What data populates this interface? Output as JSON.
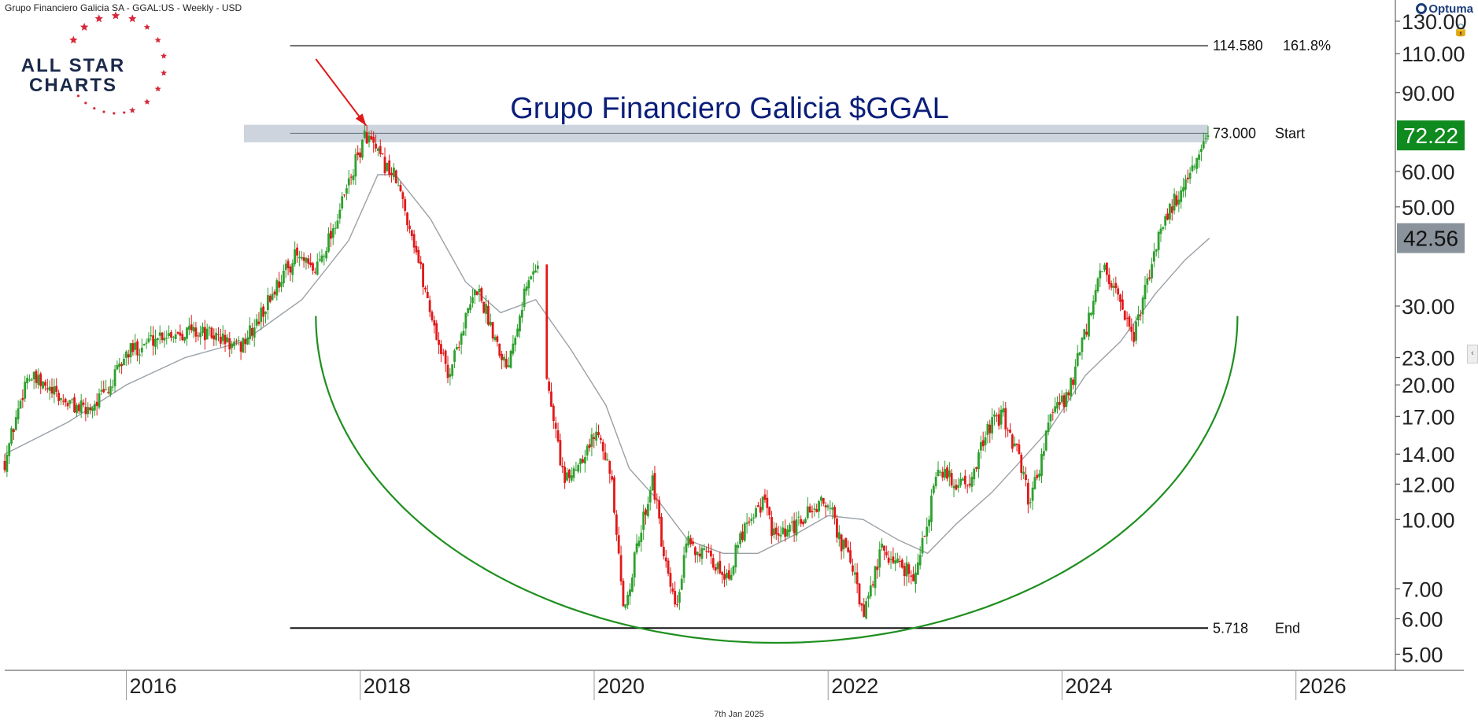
{
  "header": {
    "instrument": "Grupo Financiero Galicia SA - GGAL:US - Weekly - USD"
  },
  "brand": {
    "name_line1": "ALL STAR",
    "name_line2": "CHARTS",
    "platform": "Optuma"
  },
  "footer": {
    "date_stamp": "7th Jan 2025"
  },
  "colors": {
    "up": "#2ea02e",
    "down": "#e01818",
    "arc": "#1f8f1f",
    "ma": "#9aa0a6",
    "title": "#0b1f7a",
    "arrow": "#e01818",
    "zone": "#bcc6d2",
    "last_price_bg": "#0f8a1e",
    "ma_price_bg": "#8a939c",
    "logo_navy": "#1b2a4a",
    "logo_red": "#d62839"
  },
  "chart_data": {
    "type": "candlestick",
    "title": "Grupo Financiero Galicia $GGAL",
    "interval": "Weekly",
    "currency": "USD",
    "y_scale": "log",
    "ylim": [
      4.6,
      145
    ],
    "xlim": [
      2014.96,
      2026.85
    ],
    "x_ticks": [
      {
        "value": 2016,
        "label": "2016"
      },
      {
        "value": 2018,
        "label": "2018"
      },
      {
        "value": 2020,
        "label": "2020"
      },
      {
        "value": 2022,
        "label": "2022"
      },
      {
        "value": 2024,
        "label": "2024"
      },
      {
        "value": 2026,
        "label": "2026"
      }
    ],
    "y_ticks": [
      {
        "value": 130,
        "label": "130.00"
      },
      {
        "value": 110,
        "label": "110.00"
      },
      {
        "value": 90,
        "label": "90.00"
      },
      {
        "value": 60,
        "label": "60.00"
      },
      {
        "value": 50,
        "label": "50.00"
      },
      {
        "value": 30,
        "label": "30.00"
      },
      {
        "value": 23,
        "label": "23.00"
      },
      {
        "value": 20,
        "label": "20.00"
      },
      {
        "value": 17,
        "label": "17.00"
      },
      {
        "value": 14,
        "label": "14.00"
      },
      {
        "value": 12,
        "label": "12.00"
      },
      {
        "value": 10,
        "label": "10.00"
      },
      {
        "value": 7,
        "label": "7.00"
      },
      {
        "value": 6,
        "label": "6.00"
      },
      {
        "value": 5,
        "label": "5.00"
      }
    ],
    "price_path": [
      [
        2014.96,
        13.5
      ],
      [
        2015.15,
        21.0
      ],
      [
        2015.45,
        18.5
      ],
      [
        2015.65,
        17.5
      ],
      [
        2015.85,
        19.5
      ],
      [
        2016.0,
        23.5
      ],
      [
        2016.3,
        26.0
      ],
      [
        2016.55,
        26.5
      ],
      [
        2016.8,
        25.5
      ],
      [
        2016.95,
        24.0
      ],
      [
        2017.1,
        27.0
      ],
      [
        2017.3,
        34.0
      ],
      [
        2017.45,
        39.0
      ],
      [
        2017.6,
        35.5
      ],
      [
        2017.8,
        47.0
      ],
      [
        2017.98,
        65.0
      ],
      [
        2018.05,
        73.0
      ],
      [
        2018.15,
        65.0
      ],
      [
        2018.3,
        58.0
      ],
      [
        2018.45,
        43.0
      ],
      [
        2018.55,
        33.0
      ],
      [
        2018.65,
        26.0
      ],
      [
        2018.75,
        21.0
      ],
      [
        2018.9,
        28.0
      ],
      [
        2019.0,
        33.0
      ],
      [
        2019.1,
        28.0
      ],
      [
        2019.25,
        22.0
      ],
      [
        2019.4,
        32.0
      ],
      [
        2019.52,
        38.0
      ],
      [
        2019.6,
        20.0
      ],
      [
        2019.75,
        12.0
      ],
      [
        2019.9,
        14.0
      ],
      [
        2020.05,
        16.0
      ],
      [
        2020.15,
        12.0
      ],
      [
        2020.25,
        6.2
      ],
      [
        2020.4,
        9.5
      ],
      [
        2020.5,
        12.5
      ],
      [
        2020.6,
        8.0
      ],
      [
        2020.7,
        6.2
      ],
      [
        2020.8,
        9.0
      ],
      [
        2020.9,
        8.5
      ],
      [
        2021.0,
        8.0
      ],
      [
        2021.15,
        7.5
      ],
      [
        2021.3,
        10.0
      ],
      [
        2021.45,
        11.0
      ],
      [
        2021.55,
        9.0
      ],
      [
        2021.7,
        9.5
      ],
      [
        2021.85,
        10.5
      ],
      [
        2022.0,
        11.0
      ],
      [
        2022.1,
        9.0
      ],
      [
        2022.2,
        8.0
      ],
      [
        2022.3,
        6.0
      ],
      [
        2022.45,
        8.5
      ],
      [
        2022.6,
        8.0
      ],
      [
        2022.75,
        7.5
      ],
      [
        2022.85,
        10.0
      ],
      [
        2022.95,
        13.0
      ],
      [
        2023.1,
        12.0
      ],
      [
        2023.25,
        12.5
      ],
      [
        2023.35,
        16.0
      ],
      [
        2023.5,
        17.0
      ],
      [
        2023.62,
        14.0
      ],
      [
        2023.72,
        11.0
      ],
      [
        2023.8,
        13.0
      ],
      [
        2023.9,
        17.0
      ],
      [
        2024.05,
        19.0
      ],
      [
        2024.2,
        26.0
      ],
      [
        2024.35,
        37.0
      ],
      [
        2024.5,
        30.0
      ],
      [
        2024.6,
        25.0
      ],
      [
        2024.72,
        33.0
      ],
      [
        2024.85,
        46.0
      ],
      [
        2025.05,
        56.0
      ],
      [
        2025.15,
        62.0
      ],
      [
        2025.26,
        72.22
      ]
    ],
    "moving_average": [
      [
        2014.96,
        14.0
      ],
      [
        2015.5,
        16.5
      ],
      [
        2016.0,
        20.0
      ],
      [
        2016.5,
        23.0
      ],
      [
        2017.0,
        25.0
      ],
      [
        2017.5,
        31.0
      ],
      [
        2017.9,
        42.0
      ],
      [
        2018.15,
        59.0
      ],
      [
        2018.3,
        59.0
      ],
      [
        2018.6,
        47.0
      ],
      [
        2018.9,
        34.0
      ],
      [
        2019.2,
        29.0
      ],
      [
        2019.5,
        31.0
      ],
      [
        2019.8,
        24.0
      ],
      [
        2020.1,
        18.0
      ],
      [
        2020.3,
        13.0
      ],
      [
        2020.55,
        11.0
      ],
      [
        2020.8,
        9.0
      ],
      [
        2021.1,
        8.4
      ],
      [
        2021.4,
        8.4
      ],
      [
        2021.7,
        9.2
      ],
      [
        2022.0,
        10.2
      ],
      [
        2022.3,
        10.0
      ],
      [
        2022.6,
        9.0
      ],
      [
        2022.85,
        8.4
      ],
      [
        2023.1,
        9.8
      ],
      [
        2023.4,
        11.5
      ],
      [
        2023.7,
        14.0
      ],
      [
        2023.9,
        16.0
      ],
      [
        2024.2,
        21.0
      ],
      [
        2024.5,
        25.0
      ],
      [
        2024.8,
        32.0
      ],
      [
        2025.05,
        38.0
      ],
      [
        2025.26,
        42.56
      ]
    ],
    "arc": {
      "x_start": 2017.62,
      "x_end": 2025.5,
      "y_top": 28.5,
      "y_bottom": 5.3
    },
    "arrow": {
      "from": [
        2017.62,
        107.0
      ],
      "to": [
        2018.05,
        76.0
      ]
    },
    "levels": [
      {
        "value": 114.58,
        "value_label": "114.580",
        "name": "161.8%",
        "x_from": 2017.4
      },
      {
        "value": 73.0,
        "value_label": "73.000",
        "name": "Start",
        "x_from": 2016.85
      },
      {
        "value": 5.718,
        "value_label": "5.718",
        "name": "End",
        "x_from": 2017.4
      }
    ],
    "last_price": {
      "value": 72.22,
      "label": "72.22"
    },
    "ma_price": {
      "value": 42.56,
      "label": "42.56"
    }
  }
}
